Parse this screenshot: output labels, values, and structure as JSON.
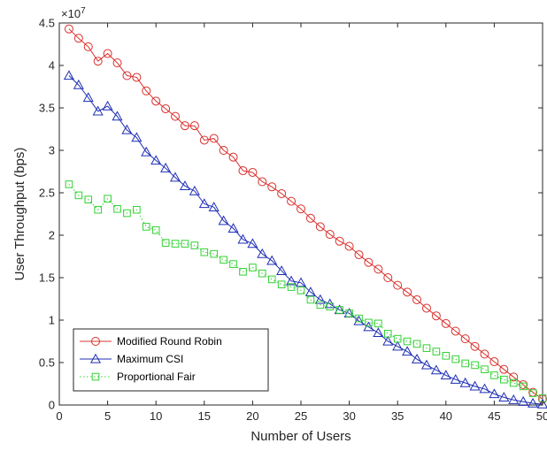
{
  "chart_data": {
    "type": "line",
    "xlabel": "Number of Users",
    "ylabel": "User Throughput (bps)",
    "xlim": [
      0,
      50
    ],
    "ylim": [
      0,
      4.5
    ],
    "y_multiplier": "×10",
    "y_exponent": "7",
    "xticks": [
      "0",
      "5",
      "10",
      "15",
      "20",
      "25",
      "30",
      "35",
      "40",
      "45",
      "50"
    ],
    "yticks": [
      "0",
      "0.5",
      "1",
      "1.5",
      "2",
      "2.5",
      "3",
      "3.5",
      "4",
      "4.5"
    ],
    "grid": false,
    "legend": "bottom-left",
    "x": [
      1,
      2,
      3,
      4,
      5,
      6,
      7,
      8,
      9,
      10,
      11,
      12,
      13,
      14,
      15,
      16,
      17,
      18,
      19,
      20,
      21,
      22,
      23,
      24,
      25,
      26,
      27,
      28,
      29,
      30,
      31,
      32,
      33,
      34,
      35,
      36,
      37,
      38,
      39,
      40,
      41,
      42,
      43,
      44,
      45,
      46,
      47,
      48,
      49,
      50
    ],
    "series": [
      {
        "name": "Modified Round Robin",
        "color": "#d9302c",
        "marker": "circle",
        "linestyle": "solid",
        "values": [
          4.43,
          4.32,
          4.22,
          4.05,
          4.14,
          4.03,
          3.88,
          3.86,
          3.7,
          3.58,
          3.49,
          3.4,
          3.29,
          3.29,
          3.12,
          3.14,
          3.0,
          2.92,
          2.76,
          2.74,
          2.63,
          2.57,
          2.49,
          2.4,
          2.31,
          2.2,
          2.1,
          2.01,
          1.93,
          1.87,
          1.77,
          1.68,
          1.6,
          1.5,
          1.41,
          1.33,
          1.24,
          1.14,
          1.05,
          0.96,
          0.87,
          0.78,
          0.69,
          0.6,
          0.51,
          0.42,
          0.33,
          0.24,
          0.15,
          0.07
        ]
      },
      {
        "name": "Maximum CSI",
        "color": "#1f2fb5",
        "marker": "triangle",
        "linestyle": "solid",
        "values": [
          3.88,
          3.77,
          3.62,
          3.46,
          3.52,
          3.4,
          3.24,
          3.15,
          2.98,
          2.88,
          2.79,
          2.68,
          2.58,
          2.52,
          2.37,
          2.33,
          2.17,
          2.08,
          1.95,
          1.9,
          1.78,
          1.7,
          1.58,
          1.46,
          1.44,
          1.33,
          1.24,
          1.19,
          1.12,
          1.08,
          0.99,
          0.92,
          0.85,
          0.75,
          0.69,
          0.63,
          0.54,
          0.47,
          0.41,
          0.35,
          0.3,
          0.26,
          0.22,
          0.19,
          0.13,
          0.09,
          0.06,
          0.04,
          0.02,
          0.01
        ]
      },
      {
        "name": "Proportional Fair",
        "color": "#33d133",
        "marker": "square",
        "linestyle": "dotted",
        "values": [
          2.6,
          2.47,
          2.42,
          2.3,
          2.43,
          2.31,
          2.26,
          2.3,
          2.1,
          2.06,
          1.91,
          1.9,
          1.9,
          1.88,
          1.8,
          1.78,
          1.71,
          1.66,
          1.57,
          1.62,
          1.55,
          1.48,
          1.42,
          1.39,
          1.35,
          1.24,
          1.18,
          1.16,
          1.12,
          1.08,
          1.02,
          0.97,
          0.96,
          0.84,
          0.78,
          0.75,
          0.72,
          0.67,
          0.63,
          0.58,
          0.54,
          0.49,
          0.47,
          0.42,
          0.35,
          0.3,
          0.26,
          0.22,
          0.14,
          0.08
        ]
      }
    ]
  }
}
